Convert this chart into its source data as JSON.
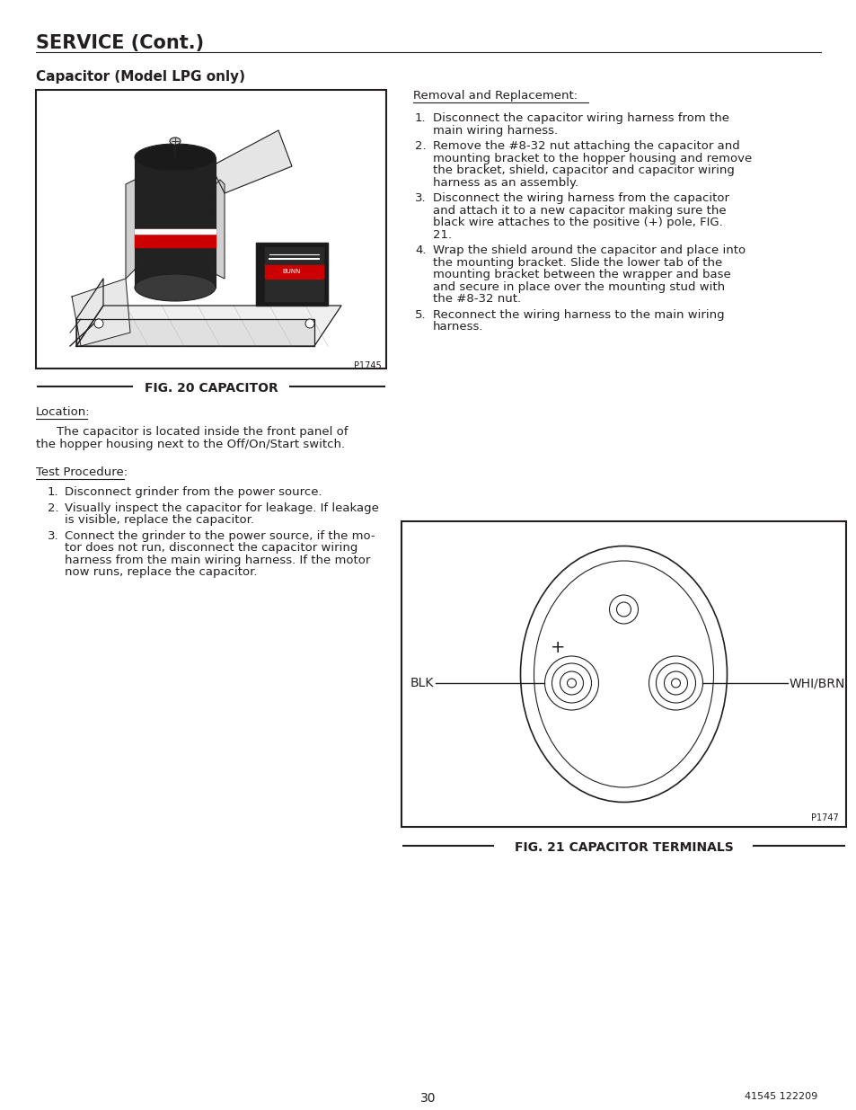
{
  "bg_color": "#ffffff",
  "title_main": "SERVICE (Cont.)",
  "subtitle": "Capacitor (Model LPG only)",
  "fig20_caption": "FIG. 20 CAPACITOR",
  "fig21_caption": "FIG. 21 CAPACITOR TERMINALS",
  "fig20_code": "P1745",
  "fig21_code": "P1747",
  "blk_label": "BLK",
  "whibrn_label": "WHI/BRN",
  "plus_label": "+",
  "location_heading": "Location:",
  "location_text_indent": "    The capacitor is located inside the front panel of",
  "location_text_cont": "the hopper housing next to the Off/On/Start switch.",
  "test_heading": "Test Procedure:",
  "test_items": [
    [
      "Disconnect grinder from the power source."
    ],
    [
      "Visually inspect the capacitor for leakage. If leakage",
      "is visible, replace the capacitor."
    ],
    [
      "Connect the grinder to the power source, if the mo-",
      "tor does not run, disconnect the capacitor wiring",
      "harness from the main wiring harness. If the motor",
      "now runs, replace the capacitor."
    ]
  ],
  "removal_heading": "Removal and Replacement:",
  "removal_items": [
    [
      "Disconnect the capacitor wiring harness from the",
      "main wiring harness."
    ],
    [
      "Remove the #8-32 nut attaching the capacitor and",
      "mounting bracket to the hopper housing and remove",
      "the bracket, shield, capacitor and capacitor wiring",
      "harness as an assembly."
    ],
    [
      "Disconnect the wiring harness from the capacitor",
      "and attach it to a new capacitor making sure the",
      "black wire attaches to the positive (+) pole, FIG.",
      "21."
    ],
    [
      "Wrap the shield around the capacitor and place into",
      "the mounting bracket. Slide the lower tab of the",
      "mounting bracket between the wrapper and base",
      "and secure in place over the mounting stud with",
      "the #8-32 nut."
    ],
    [
      "Reconnect the wiring harness to the main wiring",
      "harness."
    ]
  ],
  "page_num": "30",
  "footer_right": "41545 122209",
  "text_color": "#231f20",
  "line_color": "#231f20"
}
